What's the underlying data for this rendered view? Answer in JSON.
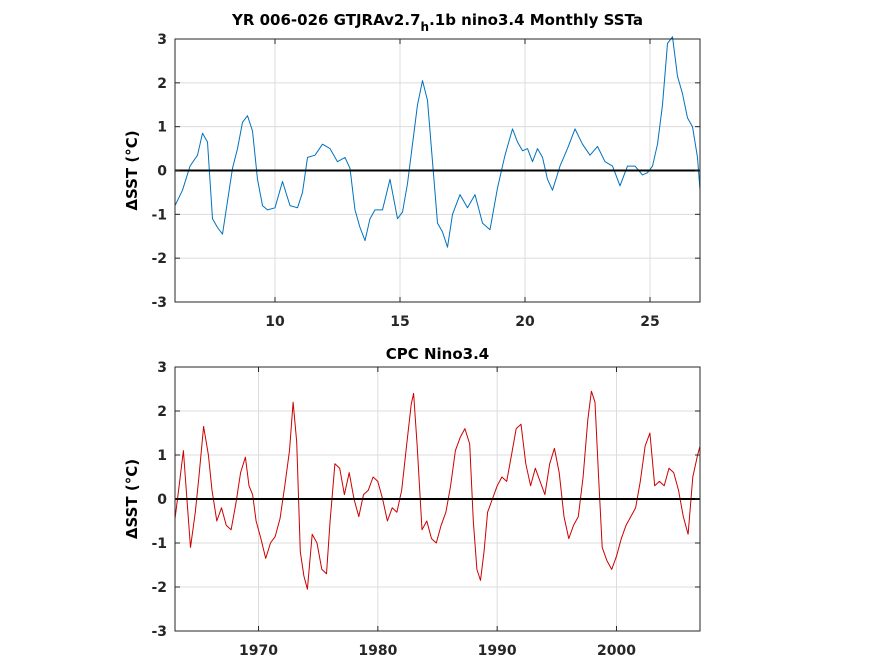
{
  "chart_data": [
    {
      "type": "line",
      "title_main": "YR 006-026 GTJRAv2.7",
      "title_sub": "h",
      "title_tail": ".1b nino3.4 Monthly SSTa",
      "ylabel": "ΔSST (°C)",
      "xlim": [
        6,
        27
      ],
      "ylim": [
        -3,
        3
      ],
      "xticks": [
        10,
        15,
        20,
        25
      ],
      "yticks": [
        -3,
        -2,
        -1,
        0,
        1,
        2,
        3
      ],
      "color": "#0072bd",
      "zero_line": true,
      "grid": true,
      "x": [
        6.0,
        6.3,
        6.6,
        6.9,
        7.1,
        7.3,
        7.5,
        7.7,
        7.9,
        8.1,
        8.3,
        8.5,
        8.7,
        8.9,
        9.1,
        9.3,
        9.5,
        9.7,
        10.0,
        10.3,
        10.6,
        10.9,
        11.1,
        11.3,
        11.6,
        11.9,
        12.2,
        12.5,
        12.8,
        13.0,
        13.2,
        13.4,
        13.6,
        13.8,
        14.0,
        14.3,
        14.6,
        14.9,
        15.1,
        15.3,
        15.5,
        15.7,
        15.9,
        16.1,
        16.3,
        16.5,
        16.7,
        16.9,
        17.1,
        17.4,
        17.7,
        18.0,
        18.3,
        18.6,
        18.9,
        19.2,
        19.5,
        19.7,
        19.9,
        20.1,
        20.3,
        20.5,
        20.7,
        20.9,
        21.1,
        21.4,
        21.7,
        22.0,
        22.3,
        22.6,
        22.9,
        23.2,
        23.5,
        23.8,
        24.1,
        24.4,
        24.7,
        24.9,
        25.1,
        25.3,
        25.5,
        25.7,
        25.9,
        26.1,
        26.3,
        26.5,
        26.7,
        26.9,
        27.0
      ],
      "y": [
        -0.8,
        -0.45,
        0.1,
        0.35,
        0.85,
        0.65,
        -1.1,
        -1.3,
        -1.45,
        -0.7,
        0.05,
        0.5,
        1.1,
        1.25,
        0.9,
        -0.2,
        -0.8,
        -0.9,
        -0.85,
        -0.25,
        -0.8,
        -0.85,
        -0.5,
        0.3,
        0.35,
        0.6,
        0.5,
        0.2,
        0.3,
        0.05,
        -0.9,
        -1.3,
        -1.6,
        -1.1,
        -0.9,
        -0.9,
        -0.2,
        -1.1,
        -0.95,
        -0.3,
        0.6,
        1.5,
        2.05,
        1.6,
        0.2,
        -1.2,
        -1.4,
        -1.75,
        -1.0,
        -0.55,
        -0.85,
        -0.55,
        -1.2,
        -1.35,
        -0.4,
        0.35,
        0.95,
        0.65,
        0.45,
        0.5,
        0.2,
        0.5,
        0.3,
        -0.2,
        -0.45,
        0.1,
        0.5,
        0.95,
        0.6,
        0.35,
        0.55,
        0.2,
        0.1,
        -0.35,
        0.1,
        0.1,
        -0.1,
        -0.05,
        0.1,
        0.6,
        1.5,
        2.9,
        3.05,
        2.15,
        1.75,
        1.2,
        1.0,
        0.3,
        -0.45
      ]
    },
    {
      "type": "line",
      "title": "CPC Nino3.4",
      "ylabel": "ΔSST (°C)",
      "xlim": [
        1963,
        2007
      ],
      "ylim": [
        -3,
        3
      ],
      "xticks": [
        1970,
        1980,
        1990,
        2000
      ],
      "yticks": [
        -3,
        -2,
        -1,
        0,
        1,
        2,
        3
      ],
      "color": "#cc0000",
      "zero_line": true,
      "grid": true,
      "x": [
        1963.0,
        1963.3,
        1963.7,
        1964.0,
        1964.3,
        1964.7,
        1965.0,
        1965.4,
        1965.8,
        1966.1,
        1966.5,
        1966.9,
        1967.3,
        1967.7,
        1968.1,
        1968.5,
        1968.9,
        1969.2,
        1969.5,
        1969.8,
        1970.2,
        1970.6,
        1971.0,
        1971.4,
        1971.8,
        1972.2,
        1972.6,
        1972.9,
        1973.2,
        1973.5,
        1973.8,
        1974.1,
        1974.5,
        1974.9,
        1975.3,
        1975.7,
        1976.0,
        1976.4,
        1976.8,
        1977.2,
        1977.6,
        1978.0,
        1978.4,
        1978.8,
        1979.2,
        1979.6,
        1980.0,
        1980.4,
        1980.8,
        1981.2,
        1981.6,
        1982.0,
        1982.4,
        1982.8,
        1983.0,
        1983.3,
        1983.7,
        1984.1,
        1984.5,
        1984.9,
        1985.3,
        1985.7,
        1986.1,
        1986.5,
        1986.9,
        1987.3,
        1987.7,
        1988.0,
        1988.3,
        1988.6,
        1988.9,
        1989.2,
        1989.6,
        1990.0,
        1990.4,
        1990.8,
        1991.2,
        1991.6,
        1992.0,
        1992.4,
        1992.8,
        1993.2,
        1993.6,
        1994.0,
        1994.4,
        1994.8,
        1995.2,
        1995.6,
        1996.0,
        1996.4,
        1996.8,
        1997.2,
        1997.6,
        1997.9,
        1998.2,
        1998.5,
        1998.8,
        1999.2,
        1999.6,
        2000.0,
        2000.4,
        2000.8,
        2001.2,
        2001.6,
        2002.0,
        2002.4,
        2002.8,
        2003.2,
        2003.6,
        2004.0,
        2004.4,
        2004.8,
        2005.2,
        2005.6,
        2006.0,
        2006.4,
        2006.8,
        2007.0
      ],
      "y": [
        -0.45,
        0.2,
        1.1,
        0.0,
        -1.1,
        -0.3,
        0.5,
        1.65,
        1.0,
        0.2,
        -0.5,
        -0.2,
        -0.6,
        -0.7,
        -0.1,
        0.6,
        0.95,
        0.3,
        0.1,
        -0.5,
        -0.9,
        -1.35,
        -1.0,
        -0.85,
        -0.45,
        0.3,
        1.1,
        2.2,
        1.3,
        -1.2,
        -1.75,
        -2.05,
        -0.8,
        -1.0,
        -1.6,
        -1.7,
        -0.5,
        0.8,
        0.7,
        0.1,
        0.6,
        0.0,
        -0.4,
        0.1,
        0.2,
        0.5,
        0.4,
        0.0,
        -0.5,
        -0.2,
        -0.3,
        0.2,
        1.2,
        2.15,
        2.4,
        1.2,
        -0.7,
        -0.5,
        -0.9,
        -1.0,
        -0.6,
        -0.3,
        0.3,
        1.1,
        1.4,
        1.6,
        1.25,
        -0.5,
        -1.6,
        -1.85,
        -1.2,
        -0.3,
        0.0,
        0.3,
        0.5,
        0.4,
        1.0,
        1.6,
        1.7,
        0.8,
        0.3,
        0.7,
        0.4,
        0.1,
        0.8,
        1.15,
        0.6,
        -0.4,
        -0.9,
        -0.6,
        -0.4,
        0.5,
        1.8,
        2.45,
        2.2,
        0.5,
        -1.1,
        -1.4,
        -1.6,
        -1.3,
        -0.9,
        -0.6,
        -0.4,
        -0.2,
        0.4,
        1.2,
        1.5,
        0.3,
        0.4,
        0.3,
        0.7,
        0.6,
        0.2,
        -0.4,
        -0.8,
        0.5,
        1.0,
        1.2
      ]
    }
  ]
}
